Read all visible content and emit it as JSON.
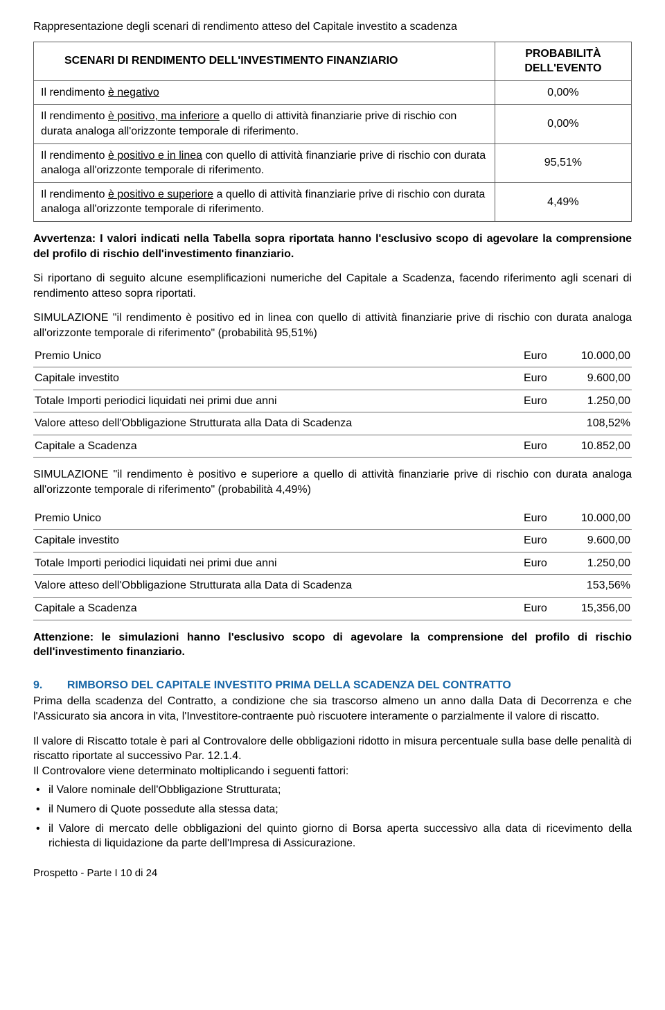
{
  "intro_title": "Rappresentazione degli scenari di rendimento atteso del Capitale investito a scadenza",
  "scenario_table": {
    "header_left": "SCENARI DI RENDIMENTO DELL'INVESTIMENTO FINANZIARIO",
    "header_right": "PROBABILITÀ DELL'EVENTO",
    "rows": [
      {
        "pre": "Il rendimento ",
        "u": "è negativo",
        "post": "",
        "val": "0,00%"
      },
      {
        "pre": "Il rendimento ",
        "u": "è positivo, ma inferiore",
        "post": " a quello di attività finanziarie prive di rischio con durata analoga all'orizzonte temporale di riferimento.",
        "val": "0,00%"
      },
      {
        "pre": "Il rendimento ",
        "u": "è positivo e in linea",
        "post": " con quello di attività finanziarie prive di rischio con durata analoga all'orizzonte temporale di riferimento.",
        "val": "95,51%"
      },
      {
        "pre": "Il rendimento ",
        "u": "è positivo e superiore",
        "post": " a quello di attività finanziarie prive di rischio con durata analoga all'orizzonte temporale di riferimento.",
        "val": "4,49%"
      }
    ]
  },
  "warning1": "Avvertenza: I valori indicati nella Tabella sopra riportata hanno l'esclusivo scopo di agevolare la comprensione del profilo di rischio dell'investimento finanziario.",
  "para_after_warning": "Si riportano di seguito alcune esemplificazioni numeriche del Capitale a Scadenza, facendo riferimento agli scenari di rendimento atteso sopra riportati.",
  "sim1_intro": "SIMULAZIONE \"il rendimento è positivo ed in linea con quello di attività finanziarie prive di rischio con durata analoga all'orizzonte temporale di riferimento\" (probabilità 95,51%)",
  "sim1": [
    {
      "label": "Premio Unico",
      "curr": "Euro",
      "num": "10.000,00"
    },
    {
      "label": "Capitale investito",
      "curr": "Euro",
      "num": "9.600,00"
    },
    {
      "label": "Totale Importi periodici liquidati nei primi due anni",
      "curr": "Euro",
      "num": "1.250,00"
    },
    {
      "label": "Valore atteso dell'Obbligazione Strutturata alla Data di Scadenza",
      "curr": "",
      "num": "108,52%"
    },
    {
      "label": "Capitale a Scadenza",
      "curr": "Euro",
      "num": "10.852,00"
    }
  ],
  "sim2_intro": "SIMULAZIONE \"il rendimento è positivo e superiore a quello di attività finanziarie prive di rischio con durata analoga all'orizzonte temporale di riferimento\" (probabilità 4,49%)",
  "sim2": [
    {
      "label": "Premio Unico",
      "curr": "Euro",
      "num": "10.000,00"
    },
    {
      "label": "Capitale investito",
      "curr": "Euro",
      "num": "9.600,00"
    },
    {
      "label": "Totale Importi periodici liquidati nei primi due anni",
      "curr": "Euro",
      "num": "1.250,00"
    },
    {
      "label": "Valore atteso dell'Obbligazione Strutturata alla Data di Scadenza",
      "curr": "",
      "num": "153,56%"
    },
    {
      "label": "Capitale a Scadenza",
      "curr": "Euro",
      "num": "15,356,00"
    }
  ],
  "warning2": "Attenzione: le simulazioni hanno l'esclusivo scopo di agevolare la comprensione del profilo di rischio dell'investimento finanziario.",
  "section9": {
    "num": "9.",
    "title": "RIMBORSO DEL CAPITALE INVESTITO PRIMA DELLA SCADENZA DEL CONTRATTO",
    "p1": "Prima della scadenza del Contratto, a condizione che sia trascorso almeno un anno dalla Data di Decorrenza e che l'Assicurato sia ancora in vita, l'Investitore-contraente può riscuotere interamente o parzialmente il valore di riscatto.",
    "p2": "Il valore di Riscatto totale è pari al Controvalore delle obbligazioni ridotto in misura percentuale sulla base delle penalità di riscatto riportate al successivo Par. 12.1.4.",
    "p3": "Il Controvalore viene determinato moltiplicando i seguenti fattori:",
    "bullets": [
      "il Valore nominale dell'Obbligazione Strutturata;",
      "il Numero di Quote possedute alla stessa data;",
      "il Valore di mercato delle obbligazioni del quinto giorno di Borsa aperta successivo alla data di ricevimento della richiesta di liquidazione da parte dell'Impresa di Assicurazione."
    ]
  },
  "footer": "Prospetto - Parte I  10 di 24"
}
